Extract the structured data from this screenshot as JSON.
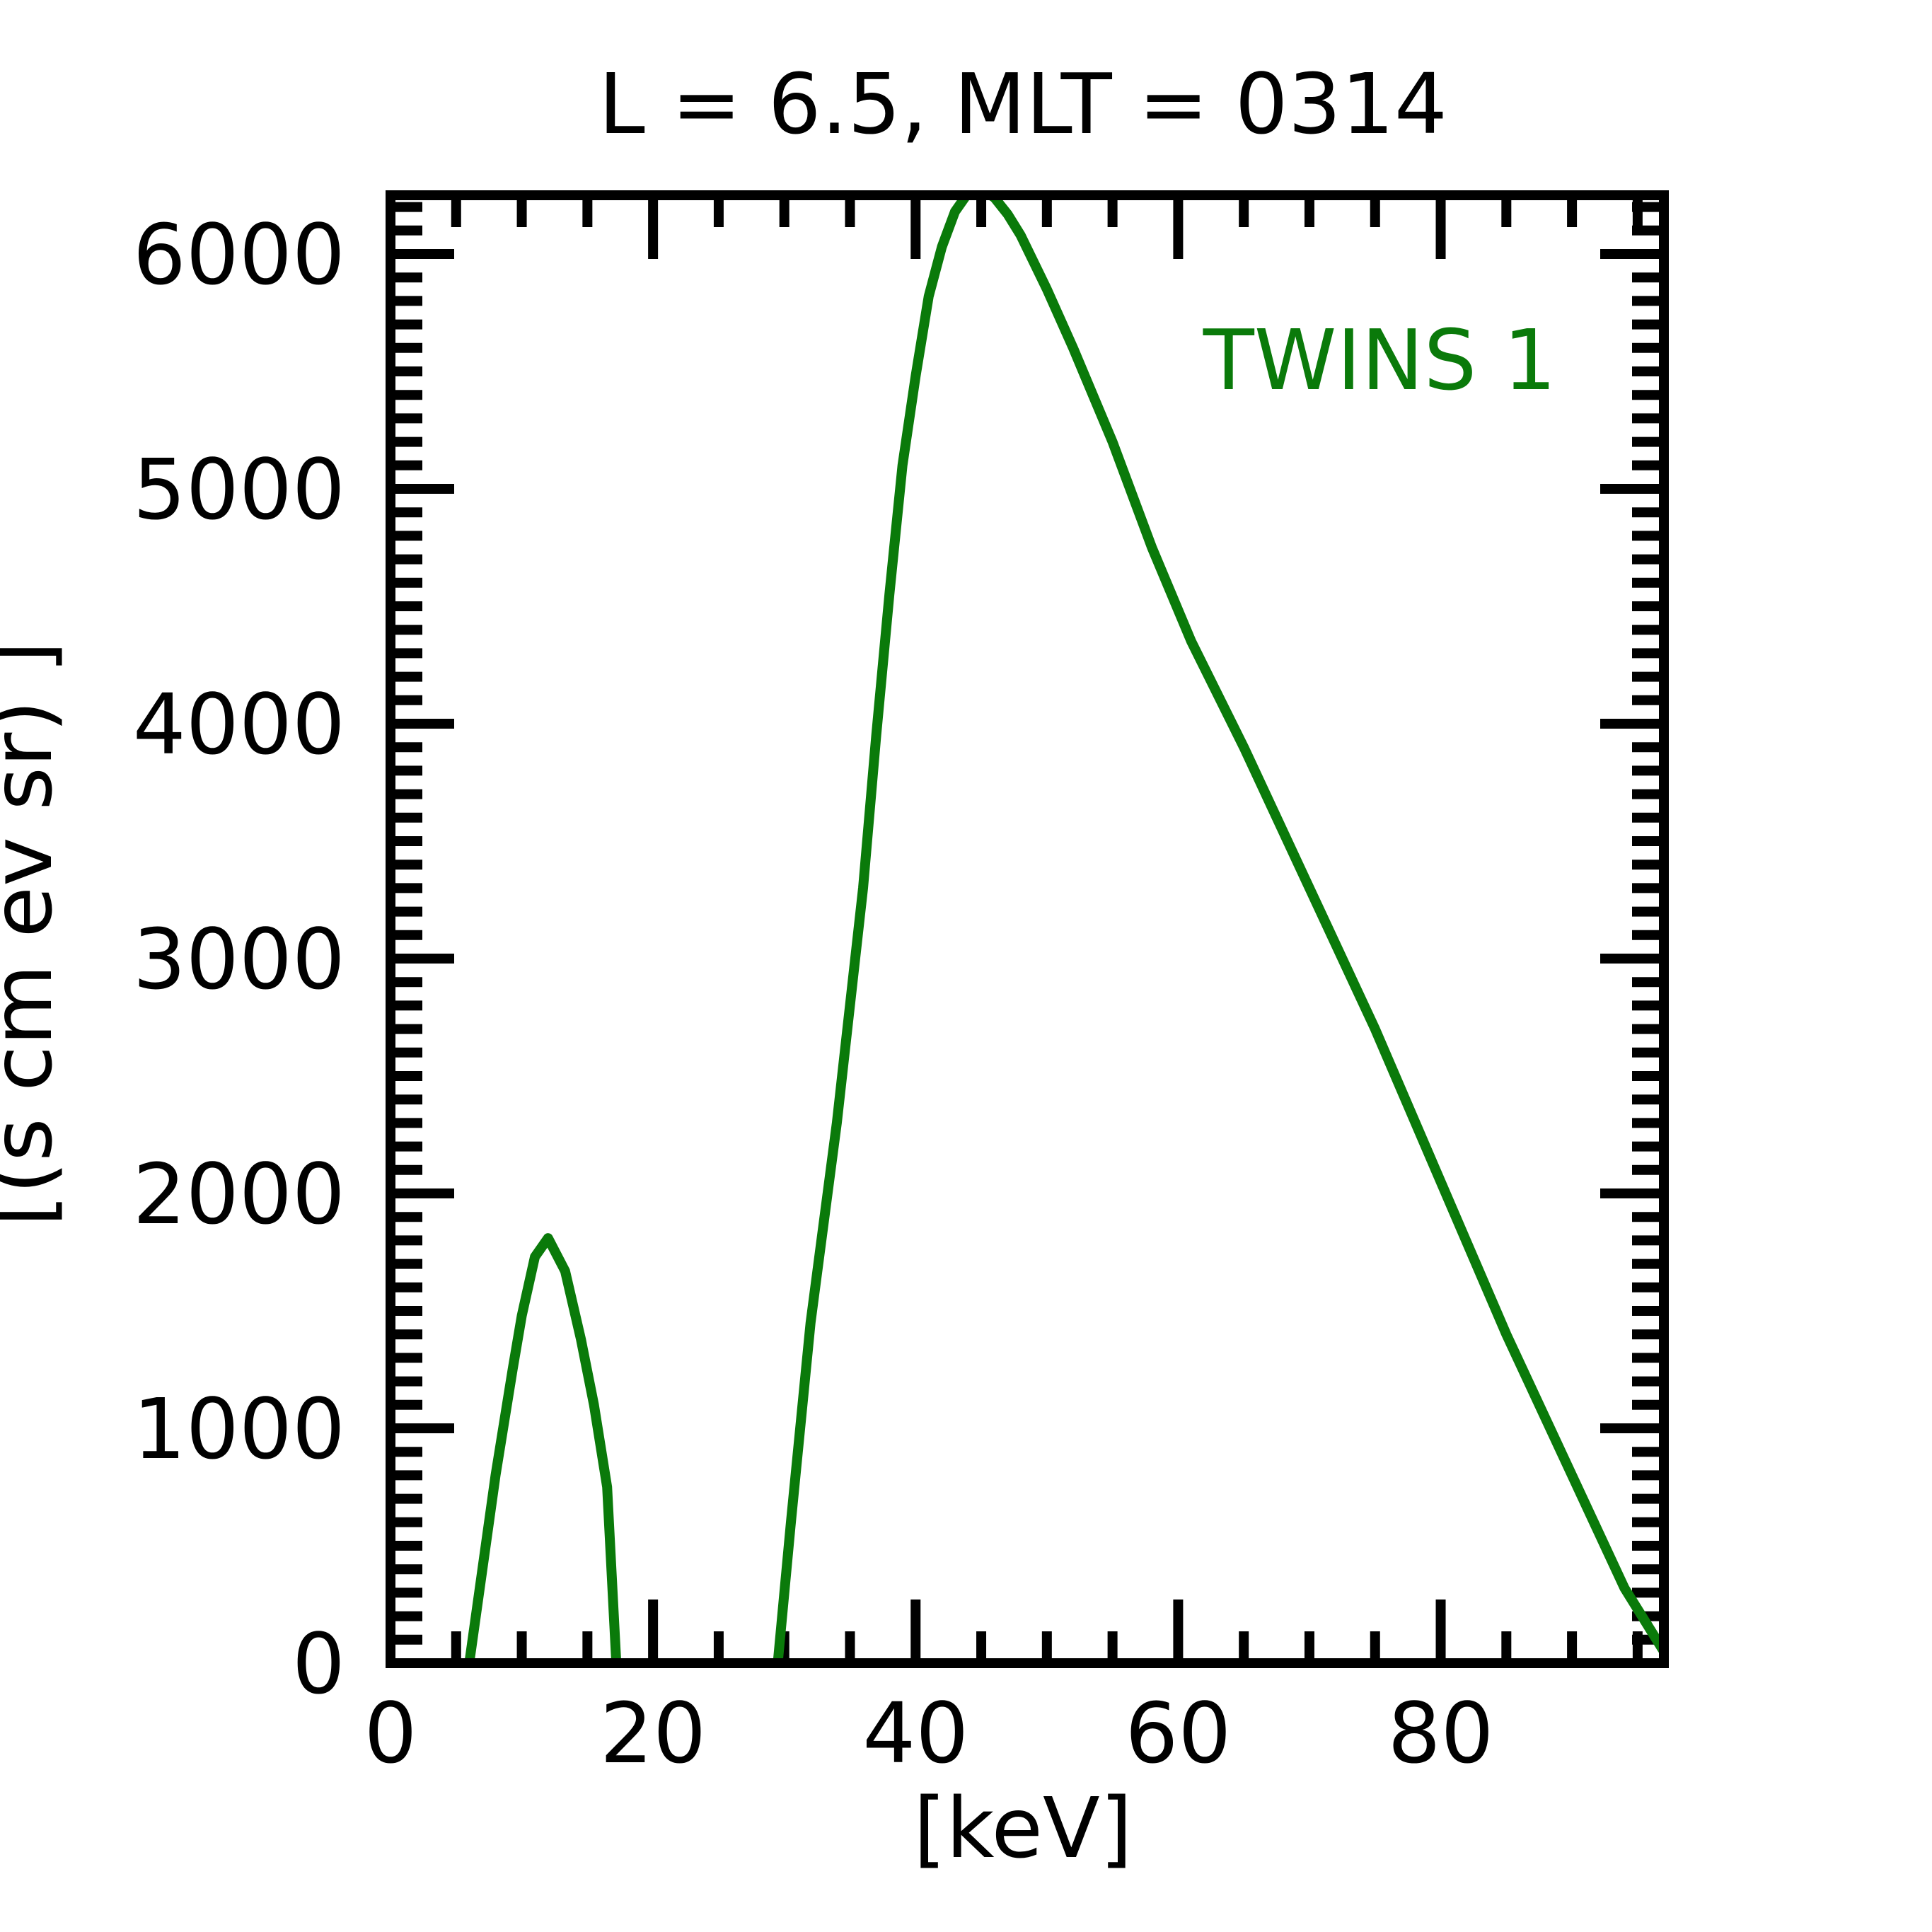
{
  "chart_data": {
    "type": "line",
    "title": "L =  6.5, MLT = 0314",
    "xlabel": "[keV]",
    "ylabel": "[(s cm  ev sr)  ]",
    "xlim": [
      0,
      97
    ],
    "ylim": [
      0,
      6250
    ],
    "xticks": [
      0,
      20,
      40,
      60,
      80
    ],
    "yticks": [
      0,
      1000,
      2000,
      3000,
      4000,
      5000,
      6000
    ],
    "x_minor_step": 5,
    "y_minor_step": 100,
    "grid": false,
    "legend_position": "top-right",
    "series": [
      {
        "name": "TWINS 1",
        "color": "#0a7a0a",
        "segments": [
          {
            "x": [
              6.0,
              8.0,
              9.3,
              10.0,
              11.0,
              12.0,
              13.3,
              14.5,
              15.5,
              16.5,
              17.2
            ],
            "y": [
              0,
              800,
              1250,
              1480,
              1730,
              1810,
              1670,
              1380,
              1100,
              750,
              0
            ]
          },
          {
            "x": [
              29.5,
              30.5,
              32.0,
              34.0,
              36.0,
              37.0,
              38.0,
              39.0,
              40.0,
              41.0,
              42.0,
              43.0,
              44.0,
              45.0,
              46.0,
              47.0,
              48.0,
              50.0,
              52.0,
              55.0,
              58.0,
              61.0,
              65.0,
              70.0,
              75.0,
              80.0,
              85.0,
              90.0,
              94.0,
              97.0
            ],
            "y": [
              0,
              600,
              1450,
              2300,
              3300,
              3950,
              4550,
              5100,
              5480,
              5820,
              6030,
              6180,
              6260,
              6275,
              6240,
              6170,
              6080,
              5850,
              5600,
              5200,
              4750,
              4350,
              3900,
              3300,
              2700,
              2050,
              1400,
              800,
              320,
              50
            ]
          }
        ]
      }
    ]
  }
}
